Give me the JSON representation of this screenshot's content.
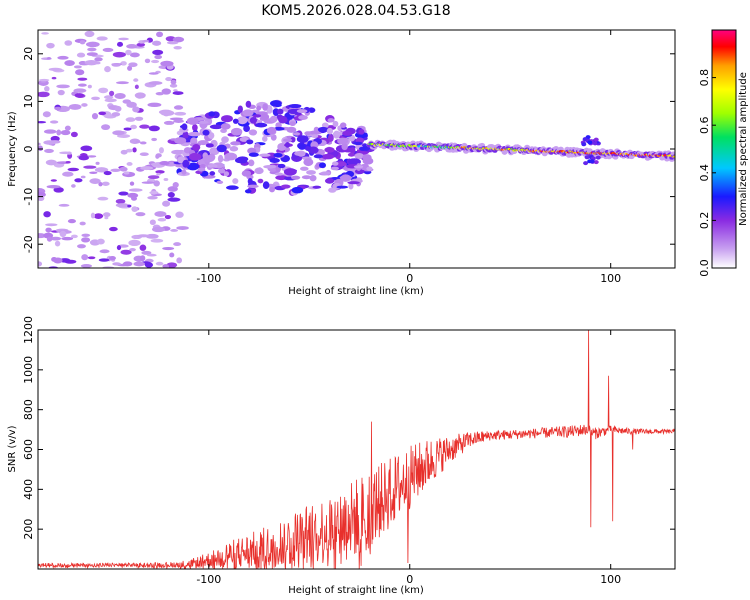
{
  "title": "KOM5.2026.028.04.53.G18",
  "chart_data": [
    {
      "type": "heatmap",
      "name": "spectrogram",
      "xlabel": "Height of straight line (km)",
      "ylabel": "Frequency (Hz)",
      "xlim": [
        -185,
        132
      ],
      "ylim": [
        -25,
        25
      ],
      "xticks": [
        -100,
        0,
        100
      ],
      "yticks": [
        -20,
        -10,
        0,
        10,
        20
      ],
      "colorbar": {
        "label": "Normalized spectral amplitude",
        "range": [
          0,
          1
        ],
        "ticks": [
          0.0,
          0.2,
          0.4,
          0.6,
          0.8
        ],
        "colormap": [
          "#ffffff",
          "#c8a0f0",
          "#8a2be2",
          "#1a1aff",
          "#00c8ff",
          "#00e060",
          "#a0ff00",
          "#ffff00",
          "#ffa000",
          "#ff0000",
          "#ff0080"
        ]
      },
      "features": [
        {
          "desc": "scattered weak noise",
          "x_range": [
            -185,
            -115
          ],
          "freq_range": [
            -25,
            25
          ],
          "amplitude": 0.1
        },
        {
          "desc": "broadband blob",
          "x_range": [
            -115,
            -25
          ],
          "freq_range": [
            -8,
            8
          ],
          "amplitude": 0.2
        },
        {
          "desc": "narrow line",
          "x_range": [
            -20,
            132
          ],
          "freq_center": [
            1,
            -1.5
          ],
          "amplitude": 0.85
        }
      ]
    },
    {
      "type": "line",
      "name": "snr",
      "xlabel": "Height of straight line (km)",
      "ylabel": "SNR (v/v)",
      "xlim": [
        -185,
        132
      ],
      "ylim": [
        0,
        1200
      ],
      "xticks": [
        -100,
        0,
        100
      ],
      "yticks": [
        200,
        400,
        600,
        800,
        1000,
        1200
      ],
      "color": "#e8302c",
      "series": [
        {
          "name": "SNR envelope",
          "x": [
            -185,
            -130,
            -110,
            -100,
            -90,
            -80,
            -70,
            -60,
            -50,
            -40,
            -30,
            -20,
            -10,
            0,
            10,
            20,
            30,
            40,
            60,
            80,
            88,
            92,
            100,
            110,
            132
          ],
          "mean": [
            20,
            20,
            25,
            45,
            70,
            90,
            110,
            140,
            170,
            200,
            240,
            300,
            380,
            460,
            540,
            600,
            650,
            670,
            680,
            690,
            700,
            680,
            700,
            690,
            690
          ],
          "spread": [
            10,
            10,
            20,
            40,
            70,
            90,
            110,
            140,
            160,
            180,
            200,
            200,
            180,
            160,
            120,
            70,
            40,
            25,
            25,
            30,
            30,
            30,
            20,
            15,
            10
          ]
        }
      ],
      "spikes": [
        {
          "x": -19,
          "y": 740
        },
        {
          "x": -1,
          "y": 30
        },
        {
          "x": 89,
          "y": 1200
        },
        {
          "x": 90,
          "y": 210
        },
        {
          "x": 99,
          "y": 970
        },
        {
          "x": 101,
          "y": 240
        },
        {
          "x": 111,
          "y": 600
        }
      ]
    }
  ]
}
